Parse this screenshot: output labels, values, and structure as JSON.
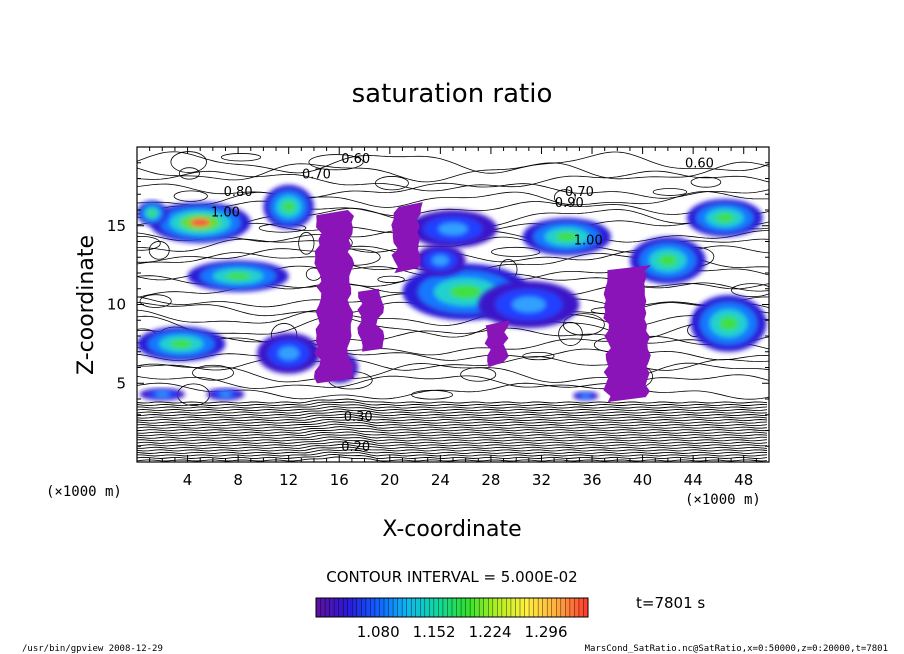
{
  "chart_data": {
    "type": "heatmap",
    "title": "saturation ratio",
    "xlabel": "X-coordinate",
    "ylabel": "Z-coordinate",
    "x_unit": "(×1000 m)",
    "y_unit": "(×1000 m)",
    "xlim": [
      0,
      50
    ],
    "ylim": [
      0,
      20
    ],
    "x_ticks": [
      4,
      8,
      12,
      16,
      20,
      24,
      28,
      32,
      36,
      40,
      44,
      48
    ],
    "y_ticks": [
      5,
      10,
      15
    ],
    "contour_interval_text": "CONTOUR INTERVAL = 5.000E-02",
    "contour_labels": [
      {
        "text": "0.60",
        "x": 17.3,
        "z": 19.0
      },
      {
        "text": "0.70",
        "x": 14.2,
        "z": 18.0
      },
      {
        "text": "0.80",
        "x": 8.0,
        "z": 16.9
      },
      {
        "text": "1.00",
        "x": 7.0,
        "z": 15.6
      },
      {
        "text": "0.60",
        "x": 44.5,
        "z": 18.7
      },
      {
        "text": "0.70",
        "x": 35.0,
        "z": 16.9
      },
      {
        "text": "0.90",
        "x": 34.2,
        "z": 16.2
      },
      {
        "text": "1.00",
        "x": 35.7,
        "z": 13.8
      },
      {
        "text": "0.30",
        "x": 17.5,
        "z": 2.6
      },
      {
        "text": "0.20",
        "x": 17.3,
        "z": 0.7
      }
    ],
    "colorbar": {
      "range": [
        1.0,
        1.35
      ],
      "labels": [
        "1.080",
        "1.152",
        "1.224",
        "1.296"
      ],
      "colors": [
        "#5a10a0",
        "#2a1ad8",
        "#1060ff",
        "#10b8f0",
        "#10d8a0",
        "#30e030",
        "#b0f020",
        "#fff040",
        "#ffb040",
        "#ff4030"
      ]
    },
    "time_label": "t=7801 s",
    "regions": [
      {
        "level": "hi",
        "x": 5.0,
        "z": 15.2,
        "rx": 4.0,
        "rz": 1.3
      },
      {
        "level": "mid",
        "x": 1.2,
        "z": 15.8,
        "rx": 1.2,
        "rz": 0.8
      },
      {
        "level": "mid",
        "x": 8.0,
        "z": 11.8,
        "rx": 4.0,
        "rz": 1.0
      },
      {
        "level": "mid",
        "x": 3.5,
        "z": 7.5,
        "rx": 3.5,
        "rz": 1.1
      },
      {
        "level": "low",
        "x": 12.0,
        "z": 6.9,
        "rx": 2.5,
        "rz": 1.3
      },
      {
        "level": "low",
        "x": 16.0,
        "z": 6.0,
        "rx": 1.5,
        "rz": 1.0
      },
      {
        "level": "mid",
        "x": 12.0,
        "z": 16.2,
        "rx": 2.0,
        "rz": 1.4
      },
      {
        "level": "mid",
        "x": 26.0,
        "z": 10.8,
        "rx": 5.0,
        "rz": 1.8
      },
      {
        "level": "low",
        "x": 31.0,
        "z": 10.0,
        "rx": 4.0,
        "rz": 1.5
      },
      {
        "level": "mid",
        "x": 34.0,
        "z": 14.3,
        "rx": 3.5,
        "rz": 1.2
      },
      {
        "level": "mid",
        "x": 42.0,
        "z": 12.8,
        "rx": 3.0,
        "rz": 1.5
      },
      {
        "level": "mid",
        "x": 46.5,
        "z": 15.5,
        "rx": 3.0,
        "rz": 1.2
      },
      {
        "level": "mid",
        "x": 46.8,
        "z": 8.8,
        "rx": 3.0,
        "rz": 1.8
      },
      {
        "level": "low",
        "x": 24.0,
        "z": 12.8,
        "rx": 2.0,
        "rz": 1.0
      },
      {
        "level": "low",
        "x": 25.0,
        "z": 14.8,
        "rx": 3.5,
        "rz": 1.2
      },
      {
        "level": "low",
        "x": 2.0,
        "z": 4.3,
        "rx": 1.8,
        "rz": 0.4
      },
      {
        "level": "low",
        "x": 7.0,
        "z": 4.3,
        "rx": 1.5,
        "rz": 0.4
      },
      {
        "level": "low",
        "x": 35.5,
        "z": 4.2,
        "rx": 1.0,
        "rz": 0.3
      }
    ],
    "columns": [
      {
        "x": 15.6,
        "width": 2.6,
        "z0": 5.0,
        "z1": 16.0
      },
      {
        "x": 21.4,
        "width": 2.0,
        "z0": 12.0,
        "z1": 16.5
      },
      {
        "x": 18.5,
        "width": 1.5,
        "z0": 7.0,
        "z1": 11.0
      },
      {
        "x": 38.8,
        "width": 3.2,
        "z0": 3.8,
        "z1": 12.5
      },
      {
        "x": 28.5,
        "width": 1.5,
        "z0": 6.0,
        "z1": 9.0
      }
    ]
  },
  "footer": {
    "left": "/usr/bin/gpview   2008-12-29",
    "right": "MarsCond_SatRatio.nc@SatRatio,x=0:50000,z=0:20000,t=7801"
  }
}
